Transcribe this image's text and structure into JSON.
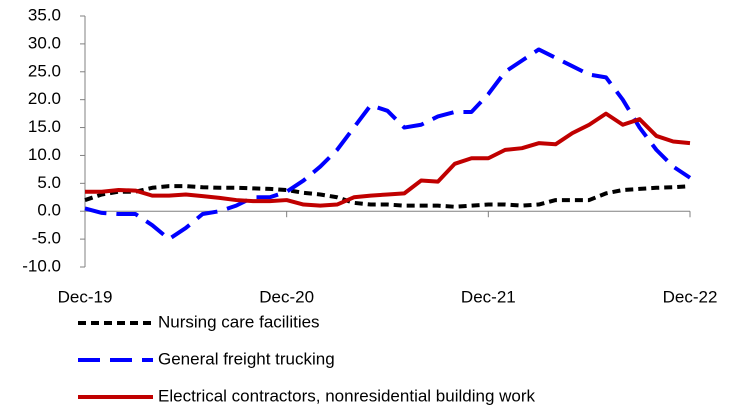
{
  "chart_data": {
    "type": "line",
    "categories": [
      "Dec-19",
      null,
      null,
      null,
      null,
      null,
      null,
      null,
      null,
      null,
      null,
      null,
      "Dec-20",
      null,
      null,
      null,
      null,
      null,
      null,
      null,
      null,
      null,
      null,
      null,
      "Dec-21",
      null,
      null,
      null,
      null,
      null,
      null,
      null,
      null,
      null,
      null,
      null,
      "Dec-22"
    ],
    "series": [
      {
        "name": "Nursing care facilities",
        "color": "#000000",
        "dash": "8,5",
        "values": [
          2,
          3,
          3.5,
          3.5,
          4.2,
          4.5,
          4.5,
          4.3,
          4.2,
          4.2,
          4.1,
          4.0,
          3.8,
          3.3,
          3.0,
          2.5,
          1.5,
          1.2,
          1.2,
          1.0,
          1.0,
          1.0,
          0.8,
          1.0,
          1.2,
          1.2,
          1.0,
          1.2,
          2.0,
          2.0,
          2.0,
          3.2,
          3.8,
          4.0,
          4.2,
          4.3,
          4.5
        ]
      },
      {
        "name": "General freight trucking",
        "color": "#0000ff",
        "dash": "22,10",
        "values": [
          0.5,
          -0.3,
          -0.5,
          -0.5,
          -2.5,
          -5,
          -3,
          -0.5,
          0,
          1,
          2.5,
          2.5,
          3.5,
          5.5,
          8,
          11,
          15,
          19,
          18,
          15,
          15.5,
          17,
          17.8,
          17.8,
          21,
          25,
          27,
          29,
          27.5,
          26,
          24.5,
          24,
          20,
          15,
          11,
          8,
          6
        ]
      },
      {
        "name": "Electrical contractors, nonresidential building work",
        "color": "#c00000",
        "dash": "none",
        "values": [
          3.5,
          3.5,
          3.8,
          3.7,
          2.8,
          2.8,
          3.0,
          2.7,
          2.4,
          2.0,
          1.8,
          1.8,
          2.0,
          1.2,
          1.0,
          1.2,
          2.5,
          2.8,
          3.0,
          3.2,
          5.5,
          5.3,
          8.5,
          9.5,
          9.5,
          11,
          11.3,
          12.2,
          12,
          14,
          15.5,
          17.5,
          15.5,
          16.5,
          13.5,
          12.5,
          12.2
        ]
      }
    ],
    "ylim": [
      -10,
      35
    ],
    "yticks": [
      {
        "value": -10,
        "label": "-10.0"
      },
      {
        "value": -5,
        "label": "-5.0"
      },
      {
        "value": 0,
        "label": "0.0"
      },
      {
        "value": 5,
        "label": "5.0"
      },
      {
        "value": 10,
        "label": "10.0"
      },
      {
        "value": 15,
        "label": "15.0"
      },
      {
        "value": 20,
        "label": "20.0"
      },
      {
        "value": 25,
        "label": "25.0"
      },
      {
        "value": 30,
        "label": "30.0"
      },
      {
        "value": 35,
        "label": "35.0"
      }
    ],
    "grid": false,
    "legend": "bottom"
  }
}
